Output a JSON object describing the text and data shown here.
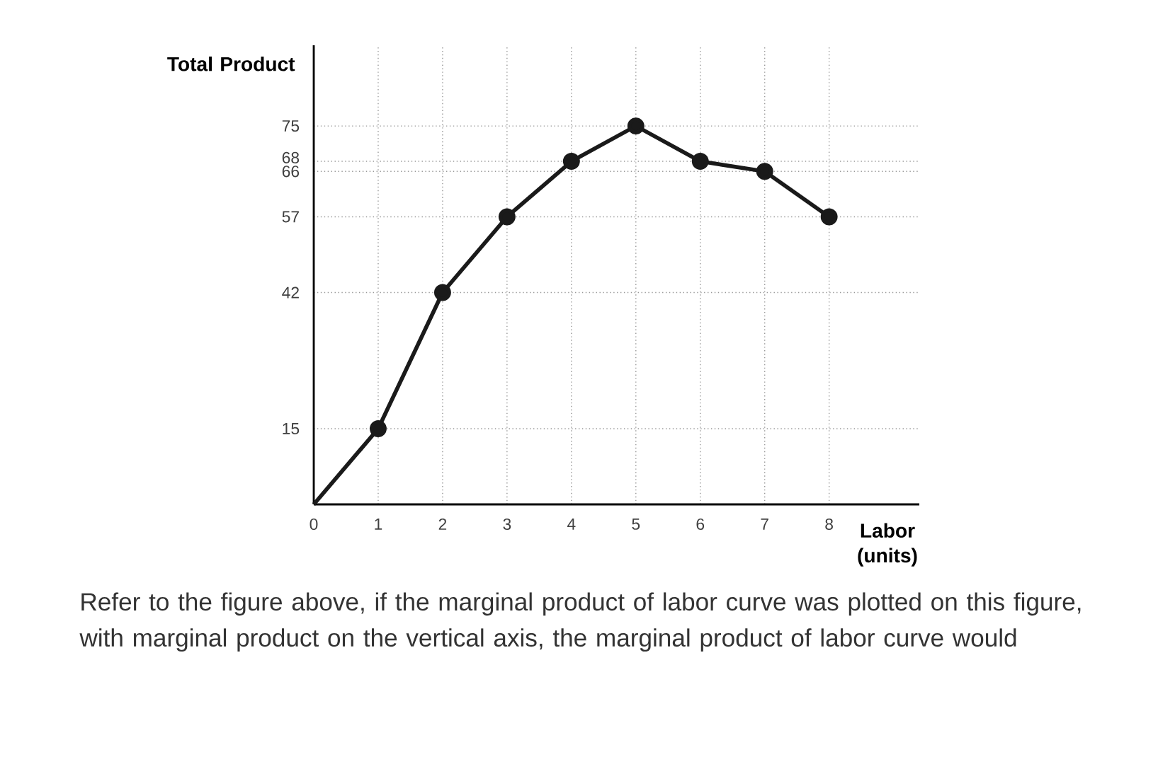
{
  "chart_data": {
    "type": "line",
    "xlabel": "Labor (units)",
    "ylabel": "Total Product",
    "x": [
      0,
      1,
      2,
      3,
      4,
      5,
      6,
      7,
      8
    ],
    "values": [
      0,
      15,
      42,
      57,
      68,
      75,
      68,
      66,
      57
    ],
    "color": "#1a1a1a",
    "marker": "circle",
    "line_style": "solid",
    "grid": true,
    "xlim": [
      0,
      9.4
    ],
    "ylim": [
      0,
      91
    ],
    "xticks": [
      0,
      1,
      2,
      3,
      4,
      5,
      6,
      7,
      8
    ],
    "yticks": [
      15,
      42,
      57,
      66,
      68,
      75
    ],
    "annotations": [
      "Refer to the figure above, if the marginal product of labor curve was plotted on this figure, with marginal product on the vertical axis, the marginal product of labor curve would"
    ]
  }
}
